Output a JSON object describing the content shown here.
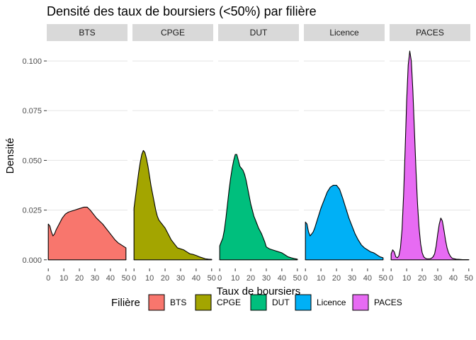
{
  "chart_data": {
    "type": "area",
    "title": "Densité des taux de boursiers (<50%) par filière",
    "xlabel": "Taux de boursiers",
    "ylabel": "Densité",
    "xlim": [
      -1,
      51
    ],
    "ylim": [
      -0.004,
      0.11
    ],
    "x_ticks": [
      0,
      10,
      20,
      30,
      40,
      50
    ],
    "y_ticks": [
      0.0,
      0.025,
      0.05,
      0.075,
      0.1
    ],
    "y_tick_labels": [
      "0.000",
      "0.025",
      "0.050",
      "0.075",
      "0.100"
    ],
    "grid": true,
    "legend": {
      "title": "Filière",
      "position": "bottom"
    },
    "series": [
      {
        "name": "BTS",
        "color": "#F8766D",
        "x": [
          0,
          1,
          2,
          3,
          4,
          5,
          7,
          9,
          11,
          13,
          15,
          17,
          19,
          21,
          23,
          25,
          27,
          29,
          31,
          33,
          35,
          37,
          39,
          41,
          43,
          45,
          47,
          49,
          50
        ],
        "y": [
          0.018,
          0.017,
          0.014,
          0.012,
          0.013,
          0.015,
          0.018,
          0.021,
          0.023,
          0.024,
          0.0245,
          0.025,
          0.0255,
          0.026,
          0.0265,
          0.0265,
          0.025,
          0.023,
          0.021,
          0.0195,
          0.018,
          0.016,
          0.014,
          0.012,
          0.01,
          0.0085,
          0.0075,
          0.0065,
          0.006
        ]
      },
      {
        "name": "CPGE",
        "color": "#A3A500",
        "x": [
          0,
          1,
          2,
          3,
          4,
          5,
          6,
          7,
          8,
          9,
          10,
          11,
          12,
          13,
          14,
          15,
          16,
          17,
          18,
          19,
          20,
          22,
          24,
          26,
          28,
          30,
          32,
          34,
          36,
          38,
          40,
          42,
          44,
          46,
          48,
          50
        ],
        "y": [
          0.026,
          0.032,
          0.038,
          0.044,
          0.049,
          0.053,
          0.055,
          0.054,
          0.051,
          0.047,
          0.042,
          0.037,
          0.033,
          0.029,
          0.025,
          0.022,
          0.02,
          0.019,
          0.018,
          0.017,
          0.016,
          0.013,
          0.01,
          0.008,
          0.006,
          0.0055,
          0.005,
          0.004,
          0.003,
          0.0027,
          0.0022,
          0.0015,
          0.001,
          0.0005,
          0.0003,
          0.0002
        ]
      },
      {
        "name": "DUT",
        "color": "#00BF7D",
        "x": [
          0,
          1,
          2,
          3,
          4,
          5,
          6,
          7,
          8,
          9,
          10,
          11,
          12,
          13,
          14,
          15,
          16,
          17,
          18,
          19,
          20,
          21,
          22,
          23,
          24,
          25,
          26,
          27,
          28,
          29,
          30,
          32,
          34,
          36,
          38,
          40,
          42,
          44,
          46,
          48,
          50
        ],
        "y": [
          0.007,
          0.009,
          0.011,
          0.015,
          0.021,
          0.028,
          0.035,
          0.041,
          0.046,
          0.05,
          0.053,
          0.053,
          0.05,
          0.047,
          0.046,
          0.045,
          0.043,
          0.04,
          0.036,
          0.032,
          0.028,
          0.025,
          0.022,
          0.02,
          0.018,
          0.016,
          0.0145,
          0.013,
          0.011,
          0.009,
          0.0065,
          0.0055,
          0.005,
          0.0045,
          0.004,
          0.0035,
          0.0025,
          0.0015,
          0.001,
          0.0006,
          0.0003
        ]
      },
      {
        "name": "Licence",
        "color": "#00B0F6",
        "x": [
          0,
          1,
          2,
          3,
          4,
          5,
          6,
          8,
          10,
          12,
          14,
          16,
          18,
          20,
          22,
          24,
          26,
          28,
          30,
          32,
          34,
          36,
          38,
          40,
          42,
          44,
          46,
          48,
          50
        ],
        "y": [
          0.019,
          0.018,
          0.014,
          0.012,
          0.013,
          0.014,
          0.016,
          0.021,
          0.026,
          0.03,
          0.034,
          0.0365,
          0.0375,
          0.0375,
          0.0355,
          0.031,
          0.026,
          0.021,
          0.017,
          0.013,
          0.01,
          0.0075,
          0.006,
          0.005,
          0.004,
          0.0035,
          0.0025,
          0.0015,
          0.001
        ]
      },
      {
        "name": "PACES",
        "color": "#E76BF3",
        "x": [
          0,
          1,
          2,
          3,
          4,
          5,
          6,
          7,
          8,
          9,
          10,
          11,
          12,
          13,
          14,
          15,
          16,
          17,
          18,
          19,
          20,
          21,
          22,
          23,
          24,
          25,
          26,
          27,
          28,
          29,
          30,
          31,
          32,
          33,
          34,
          35,
          36,
          37,
          38,
          39,
          40,
          42,
          44,
          46,
          48,
          50
        ],
        "y": [
          0.003,
          0.005,
          0.004,
          0.0015,
          0.001,
          0.002,
          0.006,
          0.015,
          0.032,
          0.055,
          0.08,
          0.098,
          0.105,
          0.1,
          0.085,
          0.065,
          0.045,
          0.028,
          0.016,
          0.008,
          0.0035,
          0.0015,
          0.0008,
          0.0005,
          0.0005,
          0.0005,
          0.0008,
          0.0015,
          0.003,
          0.007,
          0.013,
          0.018,
          0.021,
          0.0195,
          0.015,
          0.01,
          0.006,
          0.0035,
          0.002,
          0.001,
          0.0006,
          0.0003,
          0.0002,
          0.0001,
          0.0001,
          0.0001
        ]
      }
    ]
  }
}
